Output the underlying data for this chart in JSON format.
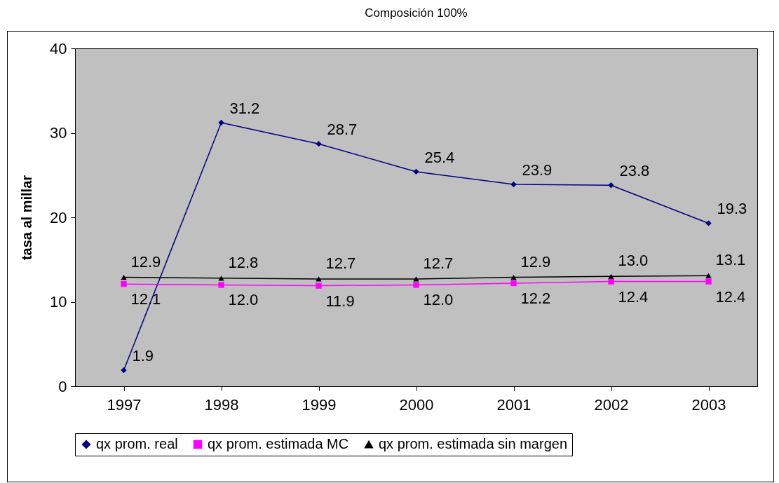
{
  "chart_data": {
    "type": "line",
    "title": "Composición 100%",
    "ylabel": "tasa al millar",
    "categories": [
      "1997",
      "1998",
      "1999",
      "2000",
      "2001",
      "2002",
      "2003"
    ],
    "series": [
      {
        "name": "qx prom. real",
        "color": "#000080",
        "marker": "diamond",
        "values": [
          1.9,
          31.2,
          28.7,
          25.4,
          23.9,
          23.8,
          19.3
        ],
        "value_labels": [
          "1.9",
          "31.2",
          "28.7",
          "25.4",
          "23.9",
          "23.8",
          "19.3"
        ]
      },
      {
        "name": "qx prom. estimada MC",
        "color": "#ff00ff",
        "marker": "square",
        "values": [
          12.1,
          12.0,
          11.9,
          12.0,
          12.2,
          12.4,
          12.4
        ],
        "value_labels": [
          "12.1",
          "12.0",
          "11.9",
          "12.0",
          "12.2",
          "12.4",
          "12.4"
        ]
      },
      {
        "name": "qx prom. estimada sin margen",
        "color": "#000000",
        "marker": "triangle",
        "values": [
          12.9,
          12.8,
          12.7,
          12.7,
          12.9,
          13.0,
          13.1
        ],
        "value_labels": [
          "12.9",
          "12.8",
          "12.7",
          "12.7",
          "12.9",
          "13.0",
          "13.1"
        ]
      }
    ],
    "ylim": [
      0,
      40
    ],
    "yticks": [
      0,
      10,
      20,
      30,
      40
    ],
    "grid": false,
    "legend": "bottom"
  }
}
